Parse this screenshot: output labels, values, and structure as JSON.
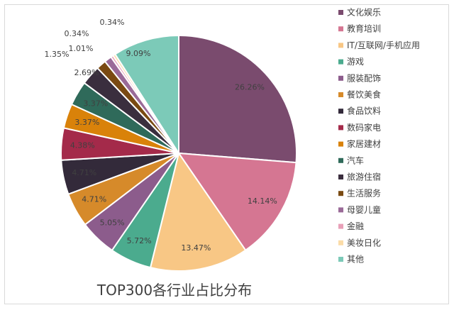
{
  "chart_data": {
    "type": "pie",
    "title": "TOP300各行业占比分布",
    "legend_position": "right",
    "slices": [
      {
        "name": "文化娱乐",
        "value": 26.26,
        "label": "26.26%",
        "color": "#7a4b6e"
      },
      {
        "name": "教育培训",
        "value": 14.14,
        "label": "14.14%",
        "color": "#d57692"
      },
      {
        "name": "IT/互联网/手机应用",
        "value": 13.47,
        "label": "13.47%",
        "color": "#f8c785"
      },
      {
        "name": "游戏",
        "value": 5.72,
        "label": "5.72%",
        "color": "#4bab8e"
      },
      {
        "name": "服装配饰",
        "value": 5.05,
        "label": "5.05%",
        "color": "#8c5c8c"
      },
      {
        "name": "餐饮美食",
        "value": 4.71,
        "label": "4.71%",
        "color": "#d68a2a"
      },
      {
        "name": "食品饮料",
        "value": 4.71,
        "label": "4.71%",
        "color": "#332a3a"
      },
      {
        "name": "数码家电",
        "value": 4.38,
        "label": "4.38%",
        "color": "#a42a4a"
      },
      {
        "name": "家居建材",
        "value": 3.37,
        "label": "3.37%",
        "color": "#d9820a"
      },
      {
        "name": "汽车",
        "value": 3.37,
        "label": "3.37%",
        "color": "#2f6a5a"
      },
      {
        "name": "旅游住宿",
        "value": 2.69,
        "label": "2.69%",
        "color": "#3a2e3e"
      },
      {
        "name": "生活服务",
        "value": 1.35,
        "label": "1.35%",
        "color": "#7a4a12"
      },
      {
        "name": "母婴儿童",
        "value": 1.01,
        "label": "1.01%",
        "color": "#9a6a98"
      },
      {
        "name": "金融",
        "value": 0.34,
        "label": "0.34%",
        "color": "#e8a0b8"
      },
      {
        "name": "美妆日化",
        "value": 0.34,
        "label": "0.34%",
        "color": "#fbdca8"
      },
      {
        "name": "其他",
        "value": 9.09,
        "label": "9.09%",
        "color": "#7ccab8"
      }
    ]
  }
}
